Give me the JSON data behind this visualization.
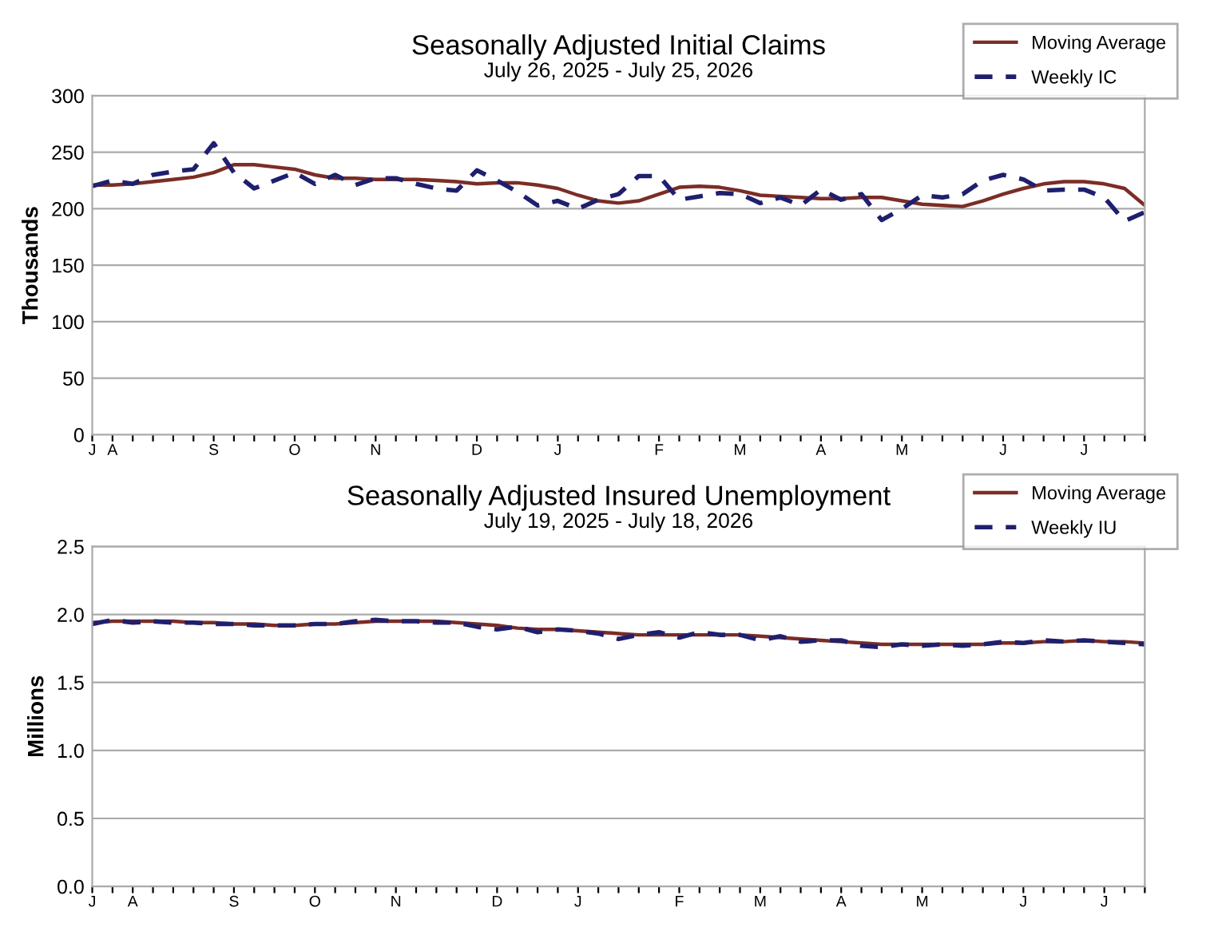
{
  "chart_data": [
    {
      "type": "line",
      "title": "Seasonally Adjusted Initial Claims",
      "subtitle": "July 26, 2025 - July 25, 2026",
      "ylabel": "Thousands",
      "categories": [
        "J",
        "A",
        null,
        null,
        null,
        null,
        "S",
        null,
        null,
        null,
        "O",
        null,
        null,
        null,
        "N",
        null,
        null,
        null,
        null,
        "D",
        null,
        null,
        null,
        "J",
        null,
        null,
        null,
        null,
        "F",
        null,
        null,
        null,
        "M",
        null,
        null,
        null,
        "A",
        null,
        null,
        null,
        "M",
        null,
        null,
        null,
        null,
        "J",
        null,
        null,
        null,
        "J",
        null,
        null,
        null
      ],
      "series": [
        {
          "name": "Moving Average",
          "color": "#7b2d26",
          "line_style": "solid",
          "values": [
            221,
            221,
            222,
            224,
            226,
            228,
            232,
            239,
            239,
            237,
            235,
            230,
            227,
            227,
            226,
            226,
            226,
            225,
            224,
            222,
            223,
            223,
            221,
            218,
            212,
            207,
            205,
            207,
            213,
            219,
            220,
            219,
            216,
            212,
            211,
            210,
            209,
            209,
            210,
            210,
            207,
            204,
            203,
            202,
            207,
            213,
            218,
            222,
            224,
            224,
            222,
            218,
            203
          ]
        },
        {
          "name": "Weekly IC",
          "color": "#1f1f6e",
          "line_style": "dashed",
          "values": [
            220,
            225,
            222,
            230,
            233,
            235,
            258,
            232,
            218,
            225,
            232,
            222,
            230,
            221,
            227,
            227,
            222,
            218,
            216,
            234,
            225,
            215,
            203,
            207,
            200,
            208,
            213,
            229,
            229,
            208,
            211,
            214,
            213,
            205,
            210,
            203,
            217,
            208,
            213,
            190,
            200,
            212,
            210,
            213,
            225,
            230,
            226,
            216,
            217,
            217,
            210,
            189,
            197
          ]
        }
      ],
      "ylim": [
        0,
        300
      ],
      "yticks": [
        0,
        50,
        100,
        150,
        200,
        250,
        300
      ],
      "grid": "y",
      "legend": "top right"
    },
    {
      "type": "line",
      "title": "Seasonally Adjusted Insured Unemployment",
      "subtitle": "July 19, 2025 - July 18, 2026",
      "ylabel": "Millions",
      "categories": [
        "J",
        null,
        "A",
        null,
        null,
        null,
        null,
        "S",
        null,
        null,
        null,
        "O",
        null,
        null,
        null,
        "N",
        null,
        null,
        null,
        null,
        "D",
        null,
        null,
        null,
        "J",
        null,
        null,
        null,
        null,
        "F",
        null,
        null,
        null,
        "M",
        null,
        null,
        null,
        "A",
        null,
        null,
        null,
        "M",
        null,
        null,
        null,
        null,
        "J",
        null,
        null,
        null,
        "J",
        null,
        null
      ],
      "series": [
        {
          "name": "Moving Average",
          "color": "#7b2d26",
          "line_style": "solid",
          "values": [
            1.94,
            1.95,
            1.95,
            1.95,
            1.95,
            1.94,
            1.94,
            1.93,
            1.93,
            1.92,
            1.92,
            1.93,
            1.93,
            1.94,
            1.95,
            1.95,
            1.95,
            1.95,
            1.94,
            1.93,
            1.92,
            1.9,
            1.89,
            1.89,
            1.88,
            1.87,
            1.86,
            1.85,
            1.85,
            1.85,
            1.85,
            1.85,
            1.85,
            1.84,
            1.83,
            1.82,
            1.81,
            1.8,
            1.79,
            1.78,
            1.78,
            1.78,
            1.78,
            1.78,
            1.78,
            1.79,
            1.79,
            1.8,
            1.8,
            1.81,
            1.8,
            1.8,
            1.79
          ]
        },
        {
          "name": "Weekly IU",
          "color": "#1f1f6e",
          "line_style": "dashed",
          "values": [
            1.93,
            1.96,
            1.94,
            1.95,
            1.94,
            1.94,
            1.93,
            1.93,
            1.92,
            1.92,
            1.92,
            1.93,
            1.93,
            1.95,
            1.96,
            1.95,
            1.95,
            1.94,
            1.94,
            1.91,
            1.89,
            1.91,
            1.87,
            1.89,
            1.88,
            1.86,
            1.82,
            1.85,
            1.87,
            1.83,
            1.87,
            1.85,
            1.85,
            1.81,
            1.84,
            1.8,
            1.81,
            1.81,
            1.77,
            1.76,
            1.78,
            1.77,
            1.78,
            1.77,
            1.78,
            1.8,
            1.79,
            1.81,
            1.8,
            1.81,
            1.8,
            1.79,
            1.78
          ]
        }
      ],
      "ylim": [
        0,
        2.5
      ],
      "yticks": [
        {
          "value": 0,
          "label": "0.0"
        },
        {
          "value": 0.5,
          "label": "0.5"
        },
        {
          "value": 1,
          "label": "1.0"
        },
        {
          "value": 1.5,
          "label": "1.5"
        },
        {
          "value": 2,
          "label": "2.0"
        },
        {
          "value": 2.5,
          "label": "2.5"
        }
      ],
      "grid": "y",
      "legend": "top right"
    }
  ]
}
